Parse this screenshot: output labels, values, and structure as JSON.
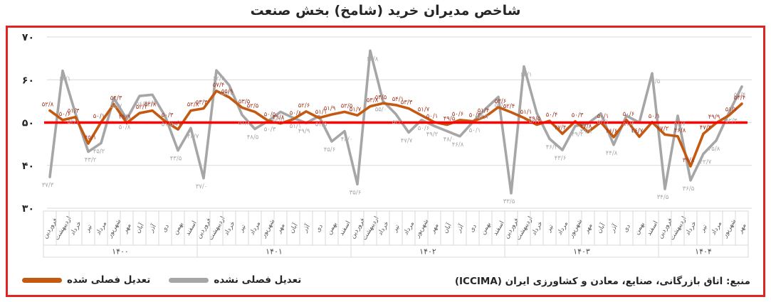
{
  "title": "شاخص مدیران خرید (شامخ) بخش صنعت",
  "source": "منبع: اتاق بازرگانی، صنایع، معادن و کشاورزی ایران (ICCIMA)",
  "legend": {
    "adjusted": {
      "label": "تعدیل فصلی شده",
      "color": "#c45911"
    },
    "unadjusted": {
      "label": "تعدیل فصلی نشده",
      "color": "#a6a6a6"
    }
  },
  "colors": {
    "adjusted_line": "#c45911",
    "unadjusted_line": "#a6a6a6",
    "adjusted_label": "#a33c28",
    "unadjusted_label": "#a8a8a8",
    "reference_line": "#ff0000",
    "gridline": "#d9d9d9",
    "axis_text": "#262626",
    "month_text": "#595959",
    "year_text": "#4d4d4d",
    "frame_border": "#e02424"
  },
  "chart_data": {
    "type": "line",
    "title": "شاخص مدیران خرید (شامخ) بخش صنعت",
    "ylim": [
      30,
      70
    ],
    "yticks": [
      70,
      60,
      50,
      40,
      30
    ],
    "ytick_labels": [
      "۷۰",
      "۶۰",
      "۵۰",
      "۴۰",
      "۳۰"
    ],
    "reference_line": 50,
    "grid": true,
    "legend_position": "bottom-left",
    "month_names": [
      "فروردین",
      "اردیبهشت",
      "خرداد",
      "تیر",
      "مرداد",
      "شهریور",
      "مهر",
      "آبان",
      "آذر",
      "دی",
      "بهمن",
      "اسفند"
    ],
    "years": [
      {
        "label": "۱۴۰۰",
        "months": 12
      },
      {
        "label": "۱۴۰۱",
        "months": 12
      },
      {
        "label": "۱۴۰۲",
        "months": 12
      },
      {
        "label": "۱۴۰۳",
        "months": 12
      },
      {
        "label": "۱۴۰۴",
        "months": 7
      }
    ],
    "series": [
      {
        "name": "تعدیل فصلی نشده",
        "color": "#a6a6a6",
        "label_color": "#a8a8a8",
        "values": [
          37.3,
          62.1,
          52.1,
          43.2,
          45.2,
          55.7,
          50.8,
          56.2,
          56.5,
          51.5,
          43.5,
          48.7,
          37.0,
          62.2,
          58.7,
          51.8,
          48.5,
          50.3,
          52.5,
          51.1,
          49.9,
          51.5,
          45.6,
          48.0,
          35.6,
          66.8,
          55.0,
          52.0,
          47.7,
          50.6,
          49.2,
          48.0,
          46.8,
          50.1,
          53.2,
          56.0,
          33.5,
          63.1,
          52.2,
          46.2,
          43.6,
          49.2,
          49.8,
          52.1,
          44.8,
          51.6,
          50.0,
          61.5,
          34.5,
          51.6,
          36.5,
          42.7,
          45.8,
          52.3,
          58.4
        ]
      },
      {
        "name": "تعدیل فصلی شده",
        "color": "#c45911",
        "label_color": "#a33c28",
        "values": [
          52.8,
          50.6,
          51.3,
          45.1,
          50.1,
          54.3,
          49.9,
          52.2,
          52.8,
          50.3,
          48.4,
          52.8,
          53.3,
          57.4,
          55.9,
          53.5,
          52.5,
          50.5,
          49.8,
          50.8,
          52.6,
          51.1,
          51.9,
          52.5,
          51.7,
          53.8,
          54.5,
          54.1,
          53.3,
          51.7,
          50.1,
          49.5,
          50.6,
          50.3,
          51.4,
          53.6,
          52.4,
          51.1,
          49.5,
          50.4,
          47.4,
          50.3,
          47.8,
          50.1,
          46.6,
          50.6,
          46.7,
          50.1,
          47.2,
          46.8,
          39.8,
          47.4,
          49.9,
          51.7,
          54.4
        ]
      }
    ]
  }
}
